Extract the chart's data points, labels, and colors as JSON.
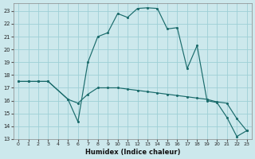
{
  "xlabel": "Humidex (Indice chaleur)",
  "bg_color": "#cce8ec",
  "grid_color": "#9ecfd6",
  "line_color": "#1a6b6b",
  "xlim": [
    -0.5,
    23.5
  ],
  "ylim": [
    13,
    23.6
  ],
  "yticks": [
    13,
    14,
    15,
    16,
    17,
    18,
    19,
    20,
    21,
    22,
    23
  ],
  "xticks": [
    0,
    1,
    2,
    3,
    4,
    5,
    6,
    7,
    8,
    9,
    10,
    11,
    12,
    13,
    14,
    15,
    16,
    17,
    18,
    19,
    20,
    21,
    22,
    23
  ],
  "series_upper_x": [
    0,
    1,
    2,
    3,
    5,
    6,
    7,
    8,
    9,
    10,
    11,
    12,
    13,
    14,
    15,
    16,
    17,
    18,
    19,
    20,
    21,
    22,
    23
  ],
  "series_upper_y": [
    17.5,
    17.5,
    17.5,
    17.5,
    16.1,
    14.35,
    19.0,
    21.0,
    21.3,
    22.8,
    22.5,
    23.2,
    23.25,
    23.2,
    21.6,
    21.7,
    18.5,
    20.3,
    16.0,
    15.85,
    14.7,
    13.2,
    13.65
  ],
  "series_lower_x": [
    0,
    1,
    2,
    3,
    5,
    6,
    7,
    8,
    9,
    10,
    11,
    12,
    13,
    14,
    15,
    16,
    17,
    18,
    19,
    20,
    21,
    22,
    23
  ],
  "series_lower_y": [
    17.5,
    17.5,
    17.5,
    17.5,
    16.1,
    15.8,
    16.5,
    17.0,
    17.0,
    17.0,
    16.9,
    16.8,
    16.7,
    16.6,
    16.5,
    16.4,
    16.3,
    16.2,
    16.1,
    15.9,
    15.8,
    14.6,
    13.65
  ]
}
